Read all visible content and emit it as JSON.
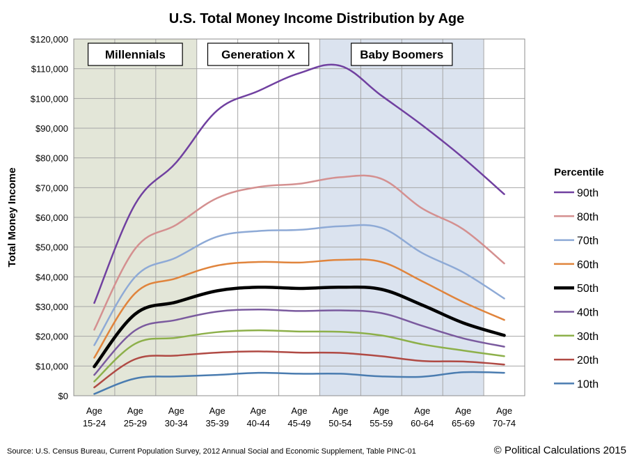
{
  "chart_data": {
    "type": "line",
    "title": "U.S. Total Money Income Distribution by Age",
    "ylabel": "Total Money Income",
    "xlabel": "",
    "ylim": [
      0,
      120000
    ],
    "yticks": [
      0,
      10000,
      20000,
      30000,
      40000,
      50000,
      60000,
      70000,
      80000,
      90000,
      100000,
      110000,
      120000
    ],
    "ytick_labels": [
      "$0",
      "$10,000",
      "$20,000",
      "$30,000",
      "$40,000",
      "$50,000",
      "$60,000",
      "$70,000",
      "$80,000",
      "$90,000",
      "$100,000",
      "$110,000",
      "$120,000"
    ],
    "categories": [
      "15-24",
      "25-29",
      "30-34",
      "35-39",
      "40-44",
      "45-49",
      "50-54",
      "55-59",
      "60-64",
      "65-69",
      "70-74"
    ],
    "category_prefix": "Age",
    "grid": true,
    "legend": {
      "title": "Percentile",
      "position": "right"
    },
    "generations": [
      {
        "label": "Millennials",
        "from": "15-24",
        "to": "30-34",
        "color": "#e3e6d8"
      },
      {
        "label": "Generation X",
        "from": "35-39",
        "to": "45-49",
        "color": "#ffffff"
      },
      {
        "label": "Baby Boomers",
        "from": "50-54",
        "to": "65-69",
        "color": "#dbe3ef"
      }
    ],
    "series": [
      {
        "name": "90th",
        "color": "#7040a0",
        "width": 2.5,
        "values": [
          31200,
          64500,
          78500,
          96000,
          102500,
          108500,
          111000,
          101000,
          91000,
          80000,
          67800
        ]
      },
      {
        "name": "80th",
        "color": "#d49090",
        "width": 2.5,
        "values": [
          22200,
          49500,
          57500,
          66500,
          70200,
          71300,
          73500,
          73000,
          63000,
          56000,
          44500
        ]
      },
      {
        "name": "70th",
        "color": "#8eaad6",
        "width": 2.5,
        "values": [
          17000,
          40000,
          46500,
          53500,
          55400,
          55800,
          57000,
          56500,
          48000,
          41500,
          32700
        ]
      },
      {
        "name": "60th",
        "color": "#e0843c",
        "width": 2.5,
        "values": [
          12800,
          34500,
          39500,
          43800,
          45000,
          44800,
          45700,
          45000,
          38500,
          31500,
          25500
        ]
      },
      {
        "name": "50th",
        "color": "#000000",
        "width": 4.5,
        "values": [
          9800,
          27500,
          31500,
          35300,
          36500,
          36100,
          36500,
          35800,
          30500,
          24500,
          20300
        ]
      },
      {
        "name": "40th",
        "color": "#7a5a9e",
        "width": 2.5,
        "values": [
          7000,
          22000,
          25500,
          28300,
          29000,
          28500,
          28700,
          27800,
          23500,
          19300,
          16500
        ]
      },
      {
        "name": "30th",
        "color": "#8db04a",
        "width": 2.5,
        "values": [
          4800,
          17500,
          19500,
          21400,
          22000,
          21600,
          21500,
          20300,
          17300,
          15200,
          13300
        ]
      },
      {
        "name": "20th",
        "color": "#b04a44",
        "width": 2.5,
        "values": [
          2800,
          12300,
          13500,
          14500,
          14900,
          14500,
          14400,
          13300,
          11700,
          11500,
          10500
        ]
      },
      {
        "name": "10th",
        "color": "#4a7cb0",
        "width": 2.5,
        "values": [
          600,
          5800,
          6500,
          7000,
          7700,
          7400,
          7400,
          6500,
          6400,
          7900,
          7700
        ]
      }
    ],
    "source": "Source: U.S. Census Bureau, Current Population Survey, 2012 Annual Social and Economic Supplement, Table PINC-01",
    "copyright": "© Political Calculations 2015"
  }
}
